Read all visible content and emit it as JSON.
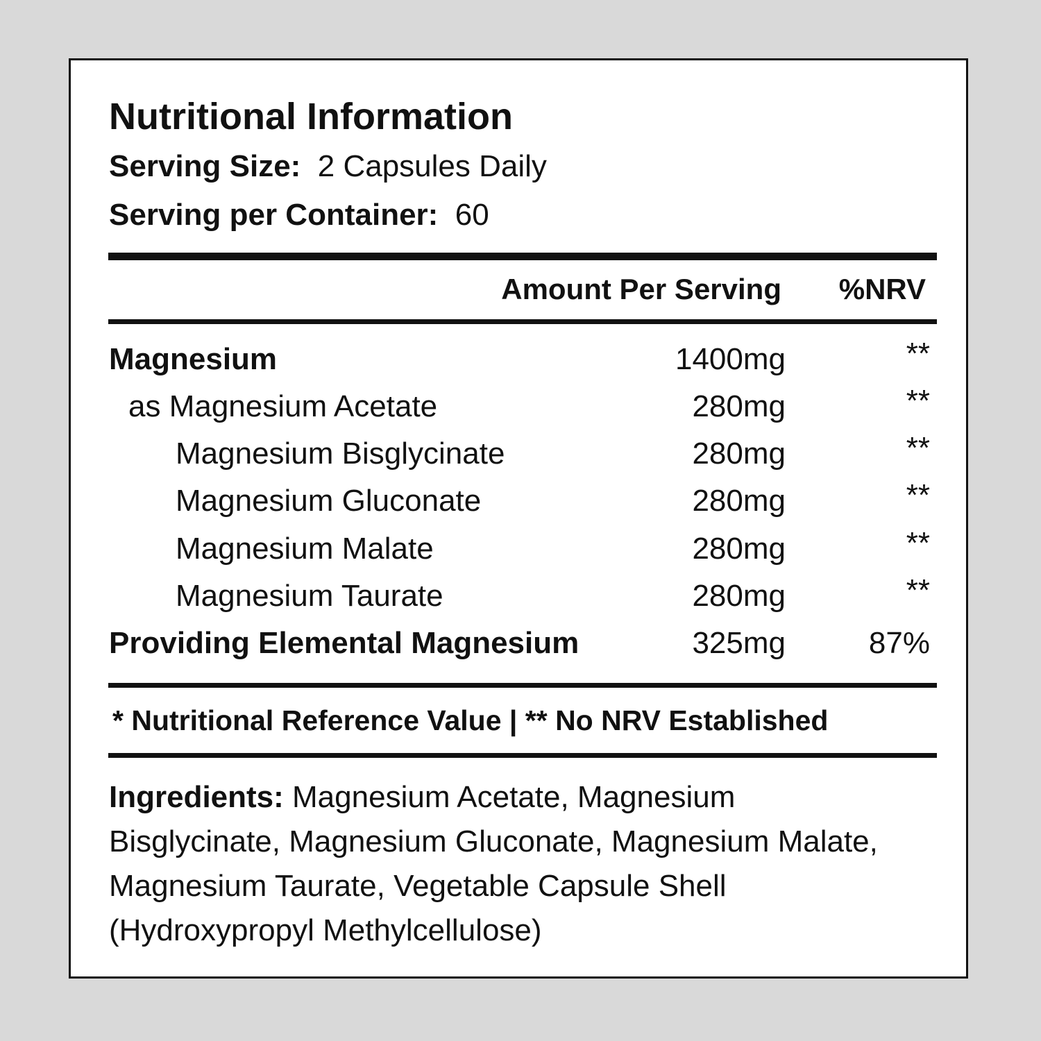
{
  "title": "Nutritional Information",
  "serving_size": {
    "label": "Serving Size:",
    "value": "2 Capsules Daily"
  },
  "servings": {
    "label": "Serving per Container:",
    "value": "60"
  },
  "headers": {
    "amount": "Amount Per Serving",
    "nrv": "%NRV"
  },
  "rows": [
    {
      "name": "Magnesium",
      "amount": "1400mg",
      "nrv": "**",
      "bold": true,
      "indent": 0
    },
    {
      "name": "as Magnesium Acetate",
      "amount": "280mg",
      "nrv": "**",
      "indent": 1
    },
    {
      "name": "Magnesium Bisglycinate",
      "amount": "280mg",
      "nrv": "**",
      "indent": 2
    },
    {
      "name": "Magnesium Gluconate",
      "amount": "280mg",
      "nrv": "**",
      "indent": 2
    },
    {
      "name": "Magnesium Malate",
      "amount": "280mg",
      "nrv": "**",
      "indent": 2
    },
    {
      "name": "Magnesium Taurate",
      "amount": "280mg",
      "nrv": "**",
      "indent": 2
    },
    {
      "name": "Providing Elemental Magnesium",
      "amount": "325mg",
      "nrv": "87%",
      "bold": true,
      "indent": 0
    }
  ],
  "footnote": "* Nutritional Reference Value  |  ** No NRV Established",
  "ingredients": {
    "label": "Ingredients:",
    "text": "Magnesium Acetate, Magnesium Bisglycinate, Magnesium Gluconate, Magnesium Malate, Magnesium Taurate, Vegetable Capsule Shell (Hydroxypropyl Methylcellulose)"
  }
}
